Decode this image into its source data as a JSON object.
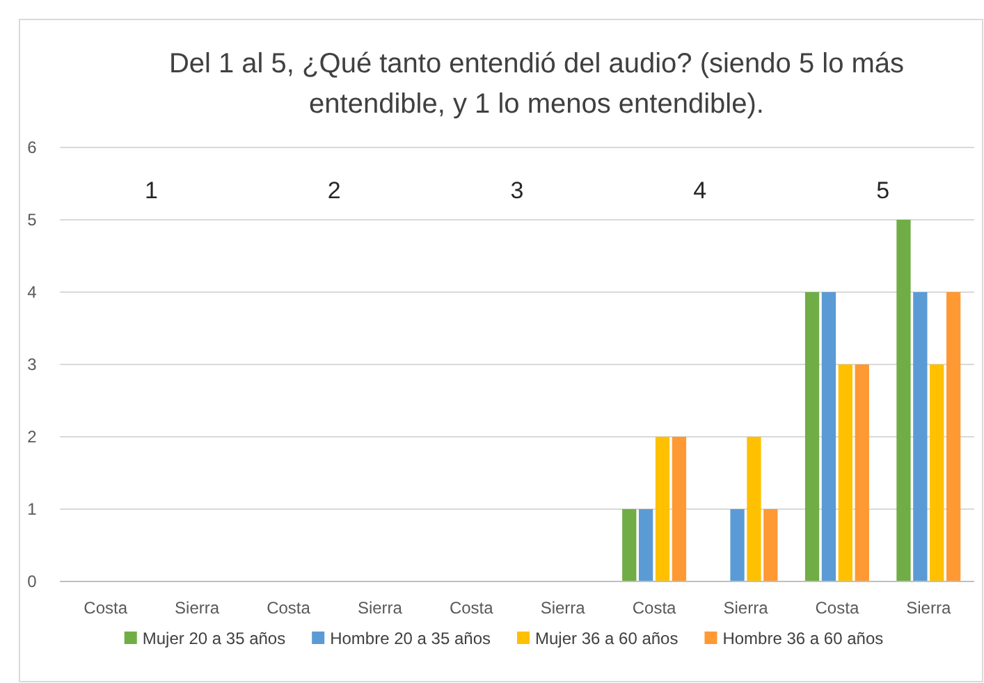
{
  "chart_data": {
    "type": "bar",
    "title": "Del 1 al 5, ¿Qué tanto entendió del audio? (siendo 5 lo más entendible, y 1 lo menos entendible).",
    "categories": [
      "Costa",
      "Sierra",
      "Costa",
      "Sierra",
      "Costa",
      "Sierra",
      "Costa",
      "Sierra",
      "Costa",
      "Sierra"
    ],
    "series": [
      {
        "name": "Mujer 20 a 35 años",
        "color": "#70ad47",
        "values": [
          0,
          0,
          0,
          0,
          0,
          0,
          1,
          0,
          4,
          5
        ]
      },
      {
        "name": "Hombre 20 a 35 años",
        "color": "#5b9bd5",
        "values": [
          0,
          0,
          0,
          0,
          0,
          0,
          1,
          1,
          4,
          4
        ]
      },
      {
        "name": "Mujer 36 a 60 años",
        "color": "#ffc000",
        "values": [
          0,
          0,
          0,
          0,
          0,
          0,
          2,
          2,
          3,
          3
        ]
      },
      {
        "name": "Hombre 36 a 60 años",
        "color": "#ff9933",
        "values": [
          0,
          0,
          0,
          0,
          0,
          0,
          2,
          1,
          3,
          4
        ]
      }
    ],
    "annotations": [
      "1",
      "2",
      "3",
      "4",
      "5"
    ],
    "ylim": [
      0,
      6
    ],
    "yticks": [
      0,
      1,
      2,
      3,
      4,
      5,
      6
    ],
    "grid": "y",
    "legend": "bottom"
  }
}
